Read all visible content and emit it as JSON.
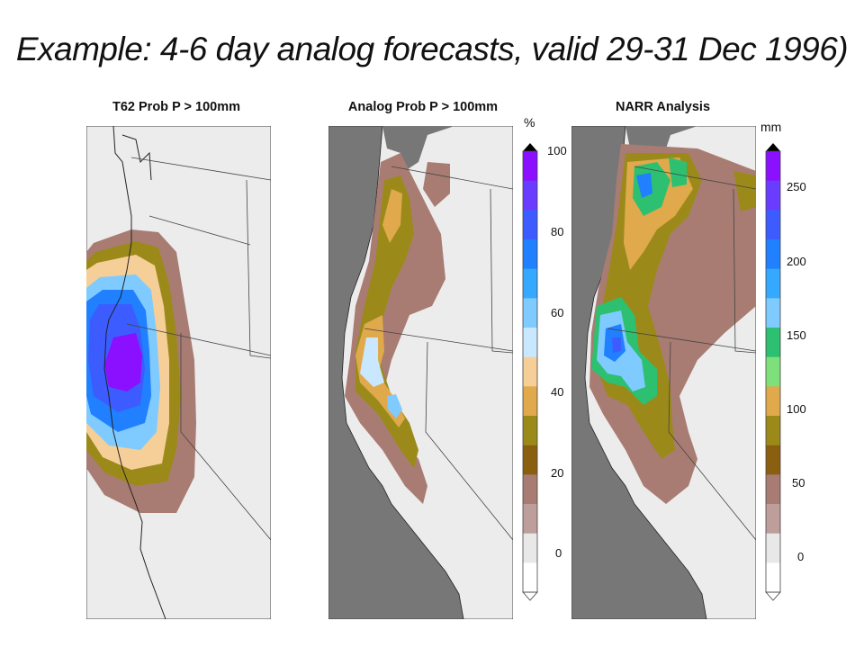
{
  "title": "Example: 4-6 day analog forecasts, valid 29-31 Dec 1996)",
  "panels": [
    {
      "title": "T62 Prob P > 100mm"
    },
    {
      "title": "Analog Prob P > 100mm"
    },
    {
      "title": "NARR Analysis"
    }
  ],
  "colorbars": [
    {
      "unit": "%",
      "ticks": [
        "100",
        "80",
        "60",
        "40",
        "20",
        "0"
      ],
      "colors": [
        "#8a10ff",
        "#6a3cff",
        "#3c5cff",
        "#2080ff",
        "#35a8ff",
        "#7fcaff",
        "#c9e8ff",
        "#f6cf98",
        "#dfa94c",
        "#9b8a1a",
        "#8a6010",
        "#a87c72",
        "#bd9e9a",
        "#e8e8e8",
        "#ffffff"
      ]
    },
    {
      "unit": "mm",
      "ticks": [
        "250",
        "200",
        "150",
        "100",
        "50",
        "0"
      ],
      "colors": [
        "#8a10ff",
        "#6a3cff",
        "#3c5cff",
        "#2080ff",
        "#35a8ff",
        "#7fcaff",
        "#2cc070",
        "#7de07a",
        "#dfa94c",
        "#9b8a1a",
        "#8a6010",
        "#a87c72",
        "#bd9e9a",
        "#e8e8e8",
        "#ffffff"
      ]
    }
  ],
  "colors": {
    "ocean_light": "#ececec",
    "ocean_dark": "#777777",
    "land": "#ececec"
  }
}
